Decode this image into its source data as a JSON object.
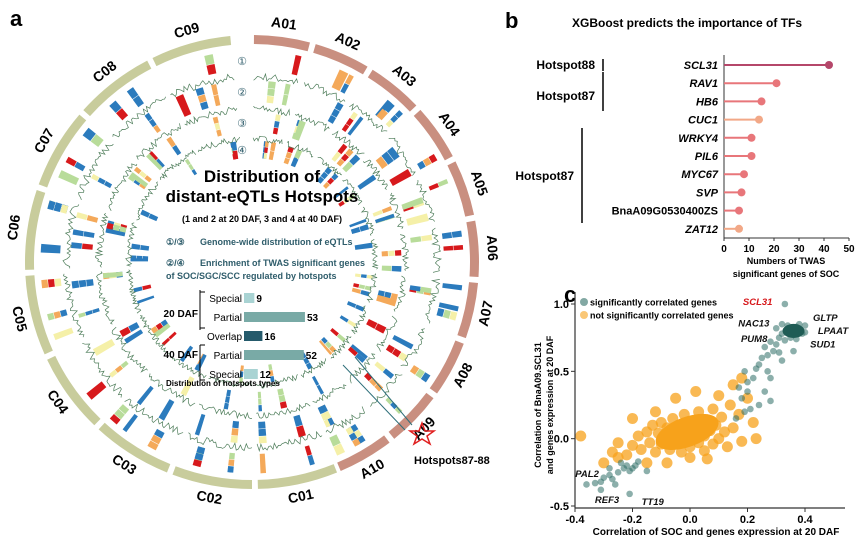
{
  "panel_a": {
    "label": "a",
    "title_line1": "Distribution of",
    "title_line2": "distant-eQTLs Hotspots",
    "subtitle": "(1 and 2 at 20 DAF, 3 and 4 at 40 DAF)",
    "legend1_tag": "①/③",
    "legend1_text": "Genome-wide distribution of eQTLs",
    "legend2_tag": "②/④",
    "legend2_line1": "Enrichment of TWAS significant genes",
    "legend2_line2": "of SOC/SGC/SCC regulated by hotspots",
    "track_markers": [
      "①",
      "②",
      "③",
      "④"
    ],
    "hotspot_label": "Hotspots87-88",
    "chromosomes_A": [
      "A01",
      "A02",
      "A03",
      "A04",
      "A05",
      "A06",
      "A07",
      "A08",
      "A09",
      "A10"
    ],
    "chromosomes_C": [
      "C01",
      "C02",
      "C03",
      "C04",
      "C05",
      "C06",
      "C07",
      "C08",
      "C09"
    ],
    "colors": {
      "A_ring": "#c98f80",
      "C_ring": "#c8cc9c",
      "blue": "#2b7bbd",
      "red": "#d7191c",
      "yellow": "#f5f0a8",
      "green": "#b8dc9a",
      "orange": "#f4a95a",
      "line": "#4e7d5a"
    },
    "hotspot_types": {
      "title": "Distribution of hotspots types",
      "group_20": "20 DAF",
      "group_40": "40 DAF",
      "bars": [
        {
          "label": "Special",
          "value": 9,
          "color": "#a9d3d3"
        },
        {
          "label": "Partial",
          "value": 53,
          "color": "#79aaa6"
        },
        {
          "label": "Overlap",
          "value": 16,
          "color": "#255a6b"
        },
        {
          "label": "Partial",
          "value": 52,
          "color": "#79aaa6"
        },
        {
          "label": "Special",
          "value": 12,
          "color": "#a9d3d3"
        }
      ]
    }
  },
  "chart_data": [
    {
      "type": "lollipop",
      "panel": "b",
      "title": "XGBoost predicts the importance of TFs",
      "xlabel_line1": "Numbers of TWAS",
      "xlabel_line2": "significant genes of SOC",
      "xlim": [
        0,
        50
      ],
      "xticks": [
        "0",
        "10",
        "20",
        "30",
        "40",
        "50"
      ],
      "categories": [
        "SCL31",
        "RAV1",
        "HB6",
        "CUC1",
        "WRKY4",
        "PIL6",
        "MYC67",
        "SVP",
        "BnaA09G0530400ZS",
        "ZAT12"
      ],
      "values": [
        42,
        21,
        15,
        14,
        11,
        11,
        8,
        7,
        6,
        6
      ],
      "colors": [
        "#b5476a",
        "#e8767a",
        "#e8767a",
        "#f2a887",
        "#e8767a",
        "#e8767a",
        "#e8767a",
        "#e8767a",
        "#e8767a",
        "#f2a887"
      ],
      "groups": [
        {
          "label": "Hotspot88",
          "members": [
            "SCL31"
          ]
        },
        {
          "label": "Hotspot87",
          "members": [
            "RAV1",
            "HB6"
          ]
        },
        {
          "label": "Hotspot87",
          "members": [
            "WRKY4",
            "PIL6",
            "MYC67",
            "SVP",
            "BnaA09G0530400ZS"
          ]
        }
      ]
    },
    {
      "type": "scatter",
      "panel": "c",
      "xlabel": "Correlation of SOC and genes expression at 20 DAF",
      "ylabel_line1": "Correlation of BnaA09.SCL31",
      "ylabel_line2": "and genes expression at 20 DAF",
      "xlim": [
        -0.4,
        0.53
      ],
      "ylim": [
        -0.5,
        1.07
      ],
      "xticks": [
        "-0.4",
        "-0.2",
        "0.0",
        "0.2",
        "0.4"
      ],
      "yticks": [
        "-0.5",
        "0.0",
        "0.5",
        "1.0"
      ],
      "legend_position": "top-left",
      "series": [
        {
          "name": "not significantly correlated genes",
          "color": "#f7a21b",
          "points": [
            [
              -0.38,
              0.02
            ],
            [
              -0.27,
              -0.1
            ],
            [
              -0.25,
              -0.14
            ],
            [
              -0.22,
              -0.12
            ],
            [
              -0.2,
              -0.05
            ],
            [
              -0.18,
              0.02
            ],
            [
              -0.17,
              -0.08
            ],
            [
              -0.15,
              0.05
            ],
            [
              -0.14,
              -0.03
            ],
            [
              -0.13,
              0.1
            ],
            [
              -0.12,
              -0.1
            ],
            [
              -0.11,
              0.04
            ],
            [
              -0.1,
              0.12
            ],
            [
              -0.1,
              -0.04
            ],
            [
              -0.09,
              0.0
            ],
            [
              -0.08,
              0.08
            ],
            [
              -0.07,
              -0.08
            ],
            [
              -0.06,
              0.15
            ],
            [
              -0.06,
              0.03
            ],
            [
              -0.05,
              -0.02
            ],
            [
              -0.04,
              0.1
            ],
            [
              -0.03,
              -0.1
            ],
            [
              -0.03,
              0.05
            ],
            [
              -0.02,
              0.18
            ],
            [
              -0.01,
              0.0
            ],
            [
              0.0,
              0.08
            ],
            [
              0.0,
              -0.06
            ],
            [
              0.01,
              0.13
            ],
            [
              0.02,
              0.03
            ],
            [
              0.03,
              -0.03
            ],
            [
              0.03,
              0.2
            ],
            [
              0.04,
              0.09
            ],
            [
              0.05,
              -0.09
            ],
            [
              0.05,
              0.02
            ],
            [
              0.06,
              0.14
            ],
            [
              0.07,
              0.06
            ],
            [
              0.08,
              -0.04
            ],
            [
              0.08,
              0.22
            ],
            [
              0.09,
              0.1
            ],
            [
              0.1,
              0.0
            ],
            [
              0.11,
              0.16
            ],
            [
              0.12,
              0.05
            ],
            [
              0.13,
              -0.06
            ],
            [
              0.14,
              0.25
            ],
            [
              0.15,
              0.08
            ],
            [
              0.17,
              0.18
            ],
            [
              0.18,
              -0.02
            ],
            [
              0.2,
              0.3
            ],
            [
              0.22,
              0.12
            ],
            [
              0.23,
              0.0
            ],
            [
              0.15,
              0.4
            ],
            [
              0.1,
              0.32
            ],
            [
              0.02,
              0.35
            ],
            [
              -0.05,
              0.3
            ],
            [
              -0.12,
              0.2
            ],
            [
              -0.2,
              0.15
            ],
            [
              -0.08,
              -0.18
            ],
            [
              0.0,
              -0.14
            ],
            [
              0.06,
              -0.15
            ],
            [
              -0.15,
              -0.18
            ],
            [
              -0.3,
              -0.18
            ],
            [
              0.18,
              0.45
            ],
            [
              -0.25,
              -0.03
            ]
          ]
        },
        {
          "name": "significantly correlated genes",
          "color": "#2e6e66",
          "points": [
            [
              0.33,
              1.0
            ],
            [
              0.34,
              0.84
            ],
            [
              0.35,
              0.82
            ],
            [
              0.36,
              0.8
            ],
            [
              0.37,
              0.83
            ],
            [
              0.38,
              0.81
            ],
            [
              0.39,
              0.78
            ],
            [
              0.36,
              0.77
            ],
            [
              0.34,
              0.79
            ],
            [
              0.32,
              0.78
            ],
            [
              0.35,
              0.75
            ],
            [
              0.38,
              0.85
            ],
            [
              0.4,
              0.84
            ],
            [
              0.4,
              0.79
            ],
            [
              0.37,
              0.74
            ],
            [
              0.33,
              0.73
            ],
            [
              0.31,
              0.75
            ],
            [
              0.3,
              0.7
            ],
            [
              0.28,
              0.72
            ],
            [
              0.29,
              0.65
            ],
            [
              0.27,
              0.62
            ],
            [
              0.31,
              0.64
            ],
            [
              0.26,
              0.68
            ],
            [
              0.25,
              0.6
            ],
            [
              0.24,
              0.55
            ],
            [
              0.27,
              0.5
            ],
            [
              0.23,
              0.52
            ],
            [
              0.22,
              0.45
            ],
            [
              0.2,
              0.42
            ],
            [
              0.19,
              0.5
            ],
            [
              0.2,
              0.35
            ],
            [
              0.18,
              0.3
            ],
            [
              0.17,
              0.38
            ],
            [
              0.26,
              0.35
            ],
            [
              0.28,
              0.28
            ],
            [
              0.24,
              0.25
            ],
            [
              0.21,
              0.22
            ],
            [
              0.19,
              0.2
            ],
            [
              0.16,
              0.15
            ],
            [
              0.28,
              0.45
            ],
            [
              0.32,
              0.58
            ],
            [
              0.36,
              0.65
            ],
            [
              0.3,
              0.82
            ],
            [
              0.32,
              0.85
            ],
            [
              -0.36,
              -0.34
            ],
            [
              -0.33,
              -0.33
            ],
            [
              -0.31,
              -0.32
            ],
            [
              -0.3,
              -0.29
            ],
            [
              -0.28,
              -0.27
            ],
            [
              -0.27,
              -0.3
            ],
            [
              -0.25,
              -0.25
            ],
            [
              -0.23,
              -0.22
            ],
            [
              -0.22,
              -0.2
            ],
            [
              -0.21,
              -0.24
            ],
            [
              -0.2,
              -0.22
            ],
            [
              -0.19,
              -0.2
            ],
            [
              -0.18,
              -0.17
            ],
            [
              -0.26,
              -0.34
            ],
            [
              -0.31,
              -0.38
            ],
            [
              -0.21,
              -0.41
            ],
            [
              -0.24,
              -0.18
            ],
            [
              -0.15,
              -0.24
            ],
            [
              -0.28,
              -0.22
            ]
          ]
        }
      ],
      "annotations": [
        {
          "text": "SCL31",
          "x": 0.33,
          "y": 1.0,
          "color": "#d7191c"
        },
        {
          "text": "GLTP",
          "x": 0.4,
          "y": 0.85,
          "color": "#111111"
        },
        {
          "text": "LPAAT",
          "x": 0.41,
          "y": 0.8,
          "color": "#111111"
        },
        {
          "text": "SUD1",
          "x": 0.39,
          "y": 0.76,
          "color": "#111111"
        },
        {
          "text": "NAC13",
          "x": 0.29,
          "y": 0.81,
          "color": "#111111"
        },
        {
          "text": "PUM8",
          "x": 0.29,
          "y": 0.77,
          "color": "#111111"
        },
        {
          "text": "PAL2",
          "x": -0.31,
          "y": -0.32,
          "color": "#111111"
        },
        {
          "text": "REF3",
          "x": -0.31,
          "y": -0.38,
          "color": "#111111"
        },
        {
          "text": "TT19",
          "x": -0.21,
          "y": -0.41,
          "color": "#111111"
        }
      ]
    }
  ],
  "panel_b_label": "b",
  "panel_c_label": "c"
}
